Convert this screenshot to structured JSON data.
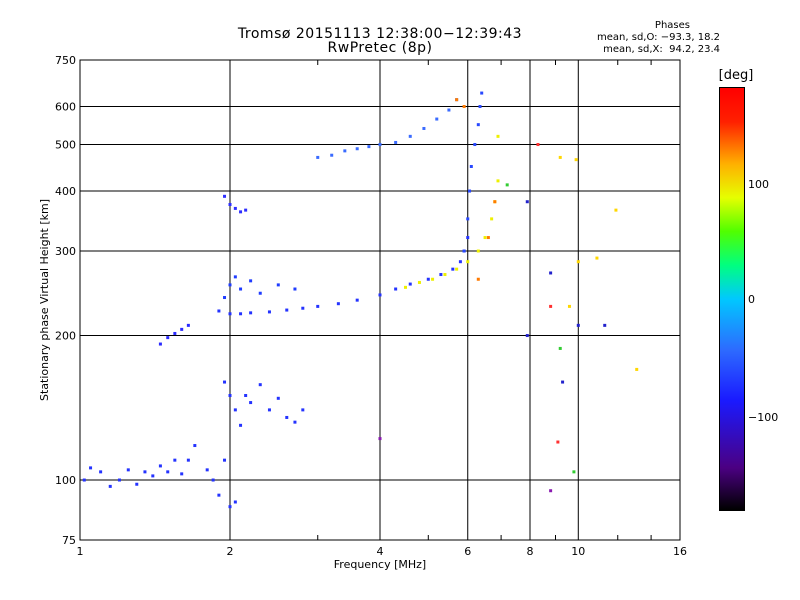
{
  "header": {
    "title_line1": "Tromsø 20151113 12:38:00−12:39:43",
    "title_line2": "RwPretec (8p)"
  },
  "stats": {
    "title": "Phases",
    "row_o": "mean, sd,O: −93.3, 18.2",
    "row_x": "mean, sd,X:  94.2, 23.4"
  },
  "colorbar": {
    "label": "[deg]",
    "ticks": [
      "100",
      "0",
      "−100"
    ],
    "colors": [
      "#000000",
      "#4b0082",
      "#1a1aff",
      "#2d6bff",
      "#00c8ff",
      "#00ff80",
      "#50ff00",
      "#e6ff00",
      "#ffb000",
      "#ff0000"
    ]
  },
  "chart_data": {
    "type": "scatter",
    "title": "Tromsø 20151113 12:38:00−12:39:43",
    "subtitle": "RwPretec (8p)",
    "xlabel": "Frequency [MHz]",
    "ylabel": "Stationary phase Virtual Height [km]",
    "xscale": "log",
    "yscale": "log",
    "xlim": [
      1,
      16
    ],
    "ylim": [
      75,
      750
    ],
    "xticks": [
      1,
      2,
      4,
      6,
      8,
      10,
      16
    ],
    "xtick_labels": [
      "1",
      "2",
      "4",
      "6",
      "8",
      "10",
      "16"
    ],
    "yticks": [
      75,
      100,
      200,
      300,
      400,
      500,
      600,
      750
    ],
    "ytick_labels": [
      "75",
      "100",
      "200",
      "300",
      "400",
      "500",
      "600",
      "750"
    ],
    "grid": true,
    "color_scale": {
      "label": "[deg]",
      "min": -150,
      "max": 150
    },
    "series": [
      {
        "color": "#2433ff",
        "x": [
          1.02,
          1.05,
          1.1,
          1.15,
          1.2,
          1.25,
          1.3,
          1.35,
          1.4,
          1.45,
          1.5,
          1.55,
          1.6,
          1.65,
          1.7,
          1.8,
          1.85,
          1.9,
          1.95,
          2.0,
          2.05
        ],
        "y": [
          100,
          106,
          104,
          97,
          100,
          105,
          98,
          104,
          102,
          107,
          104,
          110,
          103,
          110,
          118,
          105,
          100,
          93,
          110,
          88,
          90
        ]
      },
      {
        "color": "#2a2aff",
        "x": [
          1.45,
          1.5,
          1.55,
          1.6,
          1.65
        ],
        "y": [
          192,
          198,
          202,
          206,
          210
        ]
      },
      {
        "color": "#2433ff",
        "x": [
          1.95,
          2.0,
          2.05,
          2.1,
          2.15,
          2.2,
          2.3,
          2.4,
          2.5,
          2.6,
          2.7,
          2.8
        ],
        "y": [
          160,
          150,
          140,
          130,
          150,
          145,
          158,
          140,
          148,
          135,
          132,
          140
        ]
      },
      {
        "color": "#2433ff",
        "x": [
          1.9,
          2.0,
          2.1,
          2.2,
          2.4,
          2.6,
          2.8,
          3.0,
          3.3,
          3.6,
          4.0,
          4.3,
          4.6,
          5.0,
          5.3,
          5.6,
          5.8,
          5.9,
          6.0
        ],
        "y": [
          225,
          222,
          222,
          223,
          224,
          226,
          228,
          230,
          233,
          237,
          243,
          250,
          256,
          262,
          268,
          275,
          285,
          300,
          320
        ]
      },
      {
        "color": "#1f3cff",
        "x": [
          1.95,
          2.0,
          2.05,
          2.1,
          2.2,
          2.3,
          2.5,
          2.7
        ],
        "y": [
          240,
          255,
          265,
          250,
          260,
          245,
          255,
          250
        ]
      },
      {
        "color": "#2e2eff",
        "x": [
          1.95,
          2.0,
          2.05,
          2.1,
          2.15
        ],
        "y": [
          390,
          375,
          368,
          362,
          365
        ]
      },
      {
        "color": "#3a6bff",
        "x": [
          3.0,
          3.2,
          3.4,
          3.6,
          3.8,
          4.0,
          4.3,
          4.6,
          4.9,
          5.2,
          5.5,
          5.7
        ],
        "y": [
          470,
          475,
          485,
          490,
          495,
          500,
          505,
          520,
          540,
          565,
          590,
          620
        ]
      },
      {
        "color": "#2848ff",
        "x": [
          5.9,
          6.0,
          6.05,
          6.1,
          6.2,
          6.3,
          6.35,
          6.4
        ],
        "y": [
          300,
          350,
          400,
          450,
          500,
          550,
          600,
          640
        ]
      },
      {
        "color": "#eef000",
        "x": [
          4.5,
          4.8,
          5.1,
          5.4,
          5.7,
          6.0,
          6.3,
          6.5,
          6.7,
          6.8,
          6.9,
          6.9
        ],
        "y": [
          252,
          258,
          262,
          268,
          275,
          285,
          300,
          320,
          350,
          380,
          420,
          520
        ]
      },
      {
        "color": "#ff7a00",
        "x": [
          6.3,
          6.6,
          6.8,
          5.7,
          5.9
        ],
        "y": [
          262,
          320,
          380,
          620,
          600
        ]
      },
      {
        "color": "#33cc33",
        "x": [
          7.2,
          9.2,
          9.8
        ],
        "y": [
          412,
          188,
          104
        ]
      },
      {
        "color": "#ffd700",
        "x": [
          9.2,
          9.6,
          9.9,
          10.0,
          10.9,
          11.9,
          13.1
        ],
        "y": [
          470,
          230,
          465,
          285,
          290,
          365,
          170
        ]
      },
      {
        "color": "#ff3030",
        "x": [
          8.3,
          8.8,
          9.1
        ],
        "y": [
          500,
          230,
          120
        ]
      },
      {
        "color": "#2222cc",
        "x": [
          7.9,
          8.8,
          9.3,
          10.0,
          11.3,
          7.9
        ],
        "y": [
          380,
          270,
          160,
          210,
          210,
          200
        ]
      },
      {
        "color": "#8a1ab0",
        "x": [
          8.8,
          4.0
        ],
        "y": [
          95,
          122
        ]
      }
    ]
  }
}
